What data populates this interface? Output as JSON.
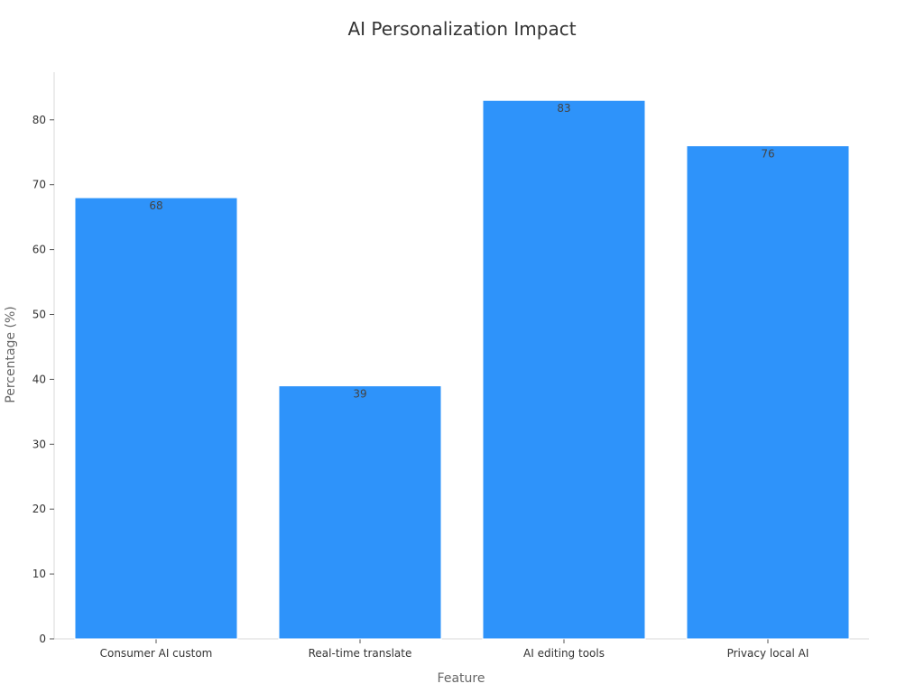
{
  "chart_data": {
    "type": "bar",
    "title": "AI Personalization Impact",
    "xlabel": "Feature",
    "ylabel": "Percentage (%)",
    "categories": [
      "Consumer AI custom",
      "Real-time translate",
      "AI editing tools",
      "Privacy local AI"
    ],
    "values": [
      68,
      39,
      83,
      76
    ],
    "data_labels": [
      "68",
      "39",
      "83",
      "76"
    ],
    "ylim": [
      0,
      87
    ],
    "yticks": [
      0,
      10,
      20,
      30,
      40,
      50,
      60,
      70,
      80
    ],
    "grid": false,
    "bar_color": "#2E93FA",
    "bar_edge_color": "#ffffff"
  }
}
